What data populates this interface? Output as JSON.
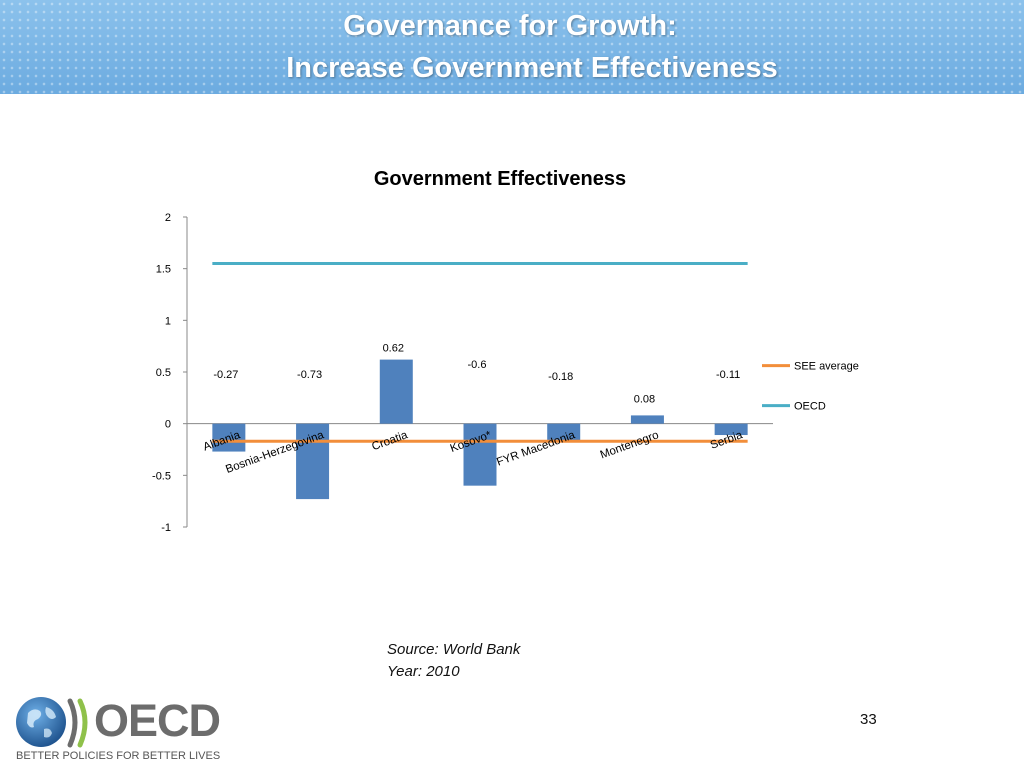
{
  "slide": {
    "title_line1": "Governance for Growth:",
    "title_line2": "Increase Government Effectiveness",
    "source_line1": "Source: World Bank",
    "source_line2": "Year: 2010",
    "page_number": "33"
  },
  "logo": {
    "word": "OECD",
    "tagline": "BETTER POLICIES FOR BETTER LIVES"
  },
  "chart_data": {
    "type": "bar",
    "title": "Government Effectiveness",
    "categories": [
      "Albania",
      "Bosnia-Herzegovina",
      "Croatia",
      "Kosovo*",
      "FYR Macedonia",
      "Montenegro",
      "Serbia"
    ],
    "values": [
      -0.27,
      -0.73,
      0.62,
      -0.6,
      -0.18,
      0.08,
      -0.11
    ],
    "ylim": [
      -1,
      2
    ],
    "yticks": [
      "2",
      "1.5",
      "1",
      "0.5",
      "0",
      "-0.5",
      "-1"
    ],
    "lines": [
      {
        "name": "SEE average",
        "value": -0.17,
        "color": "#f28e3a"
      },
      {
        "name": "OECD",
        "value": 1.55,
        "color": "#4aaec6"
      }
    ],
    "bar_color": "#4f81bd",
    "grid": false,
    "legend_position": "right"
  }
}
